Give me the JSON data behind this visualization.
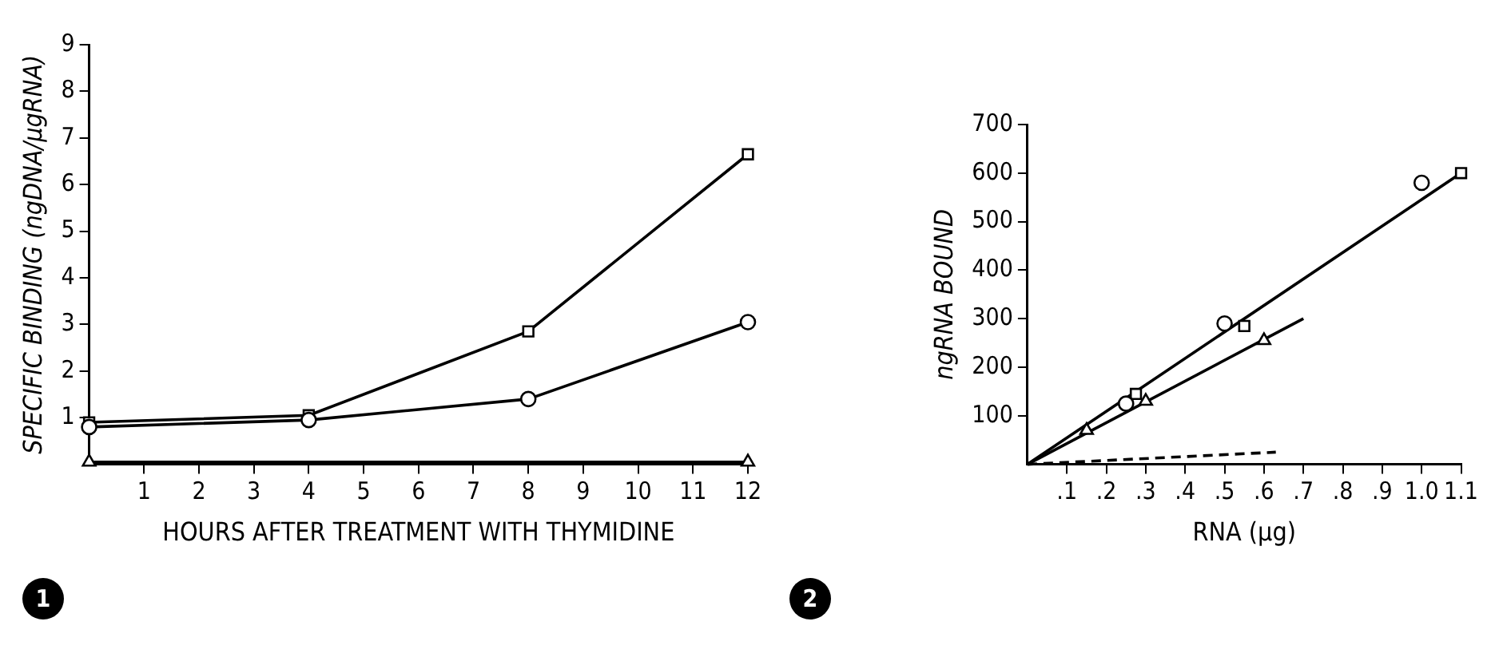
{
  "chart_data": [
    {
      "type": "line",
      "xlabel": "HOURS AFTER TREATMENT WITH THYMIDINE",
      "ylabel": "SPECIFIC BINDING (ngDNA/µgRNA)",
      "x": [
        0,
        4,
        8,
        12
      ],
      "xlim": [
        0,
        12
      ],
      "xticks": [
        1,
        2,
        3,
        4,
        5,
        6,
        7,
        8,
        9,
        10,
        11,
        12
      ],
      "ylim": [
        0,
        9
      ],
      "yticks": [
        1,
        2,
        3,
        4,
        5,
        6,
        7,
        8,
        9
      ],
      "grid": false,
      "legend": false,
      "annotations": [
        "1"
      ],
      "series": [
        {
          "color": "#000000",
          "marker": "circle",
          "values": [
            0.8,
            0.95,
            1.4,
            3.05
          ]
        },
        {
          "color": "#000000",
          "marker": "square",
          "values": [
            0.9,
            1.05,
            2.85,
            6.65
          ]
        },
        {
          "color": "#000000",
          "marker": "triangle",
          "x": [
            0,
            12
          ],
          "values": [
            0.05,
            0.05
          ]
        }
      ]
    },
    {
      "type": "scatter",
      "xlabel": "RNA (µg)",
      "ylabel": "ngRNA BOUND",
      "xlim": [
        0,
        1.1
      ],
      "xticks": [
        {
          "value": 0.1,
          "label": ".1"
        },
        {
          "value": 0.2,
          "label": ".2"
        },
        {
          "value": 0.3,
          "label": ".3"
        },
        {
          "value": 0.4,
          "label": ".4"
        },
        {
          "value": 0.5,
          "label": ".5"
        },
        {
          "value": 0.6,
          "label": ".6"
        },
        {
          "value": 0.7,
          "label": ".7"
        },
        {
          "value": 0.8,
          "label": ".8"
        },
        {
          "value": 0.9,
          "label": ".9"
        },
        {
          "value": 1.0,
          "label": "1.0"
        },
        {
          "value": 1.1,
          "label": "1.1"
        }
      ],
      "ylim": [
        0,
        700
      ],
      "yticks": [
        100,
        200,
        300,
        400,
        500,
        600,
        700
      ],
      "grid": false,
      "legend": false,
      "annotations": [
        "2"
      ],
      "series": [
        {
          "color": "#000000",
          "marker": "circle",
          "x": [
            0.25,
            0.5,
            1.0
          ],
          "values": [
            125,
            290,
            580
          ]
        },
        {
          "color": "#000000",
          "marker": "square",
          "x": [
            0.275,
            0.55,
            1.1
          ],
          "values": [
            145,
            285,
            600
          ]
        },
        {
          "color": "#000000",
          "marker": "triangle",
          "x": [
            0.15,
            0.3,
            0.6
          ],
          "values": [
            70,
            130,
            255
          ]
        },
        {
          "type": "line",
          "color": "#000000",
          "marker": "none",
          "line_style": "solid",
          "x": [
            0,
            1.1
          ],
          "values": [
            0,
            600
          ]
        },
        {
          "type": "line",
          "color": "#000000",
          "marker": "none",
          "line_style": "solid",
          "x": [
            0,
            0.7
          ],
          "values": [
            0,
            300
          ]
        },
        {
          "type": "line",
          "color": "#000000",
          "marker": "none",
          "line_style": "dashed",
          "x": [
            0,
            0.63
          ],
          "values": [
            0,
            25
          ]
        }
      ]
    }
  ]
}
